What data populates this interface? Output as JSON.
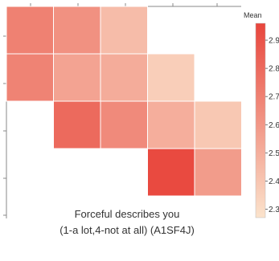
{
  "chart_data": {
    "type": "heatmap",
    "title": "",
    "xlabel_line1": "Forceful describes you",
    "xlabel_line2": "(1-a lot,4-not at all) (A1SF4J)",
    "ylabel": "",
    "cells": [
      {
        "row": 0,
        "col": 0,
        "value": 2.7
      },
      {
        "row": 0,
        "col": 1,
        "value": 2.63
      },
      {
        "row": 0,
        "col": 2,
        "value": 2.44
      },
      {
        "row": 1,
        "col": 0,
        "value": 2.69
      },
      {
        "row": 1,
        "col": 1,
        "value": 2.55
      },
      {
        "row": 1,
        "col": 2,
        "value": 2.51
      },
      {
        "row": 1,
        "col": 3,
        "value": 2.36
      },
      {
        "row": 2,
        "col": 1,
        "value": 2.8
      },
      {
        "row": 2,
        "col": 2,
        "value": 2.66
      },
      {
        "row": 2,
        "col": 3,
        "value": 2.5
      },
      {
        "row": 2,
        "col": 4,
        "value": 2.39
      },
      {
        "row": 3,
        "col": 3,
        "value": 2.94
      },
      {
        "row": 3,
        "col": 4,
        "value": 2.58
      }
    ],
    "colorbar": {
      "title": "Mean",
      "ticks": [
        "2.9",
        "2.8",
        "2.7",
        "2.6",
        "2.5",
        "2.4",
        "2.3"
      ],
      "tick_values": [
        2.9,
        2.8,
        2.7,
        2.6,
        2.5,
        2.4,
        2.3
      ],
      "min": 2.27,
      "max": 2.96,
      "color_low": "#fbe3cc",
      "color_high": "#e8453c"
    }
  }
}
